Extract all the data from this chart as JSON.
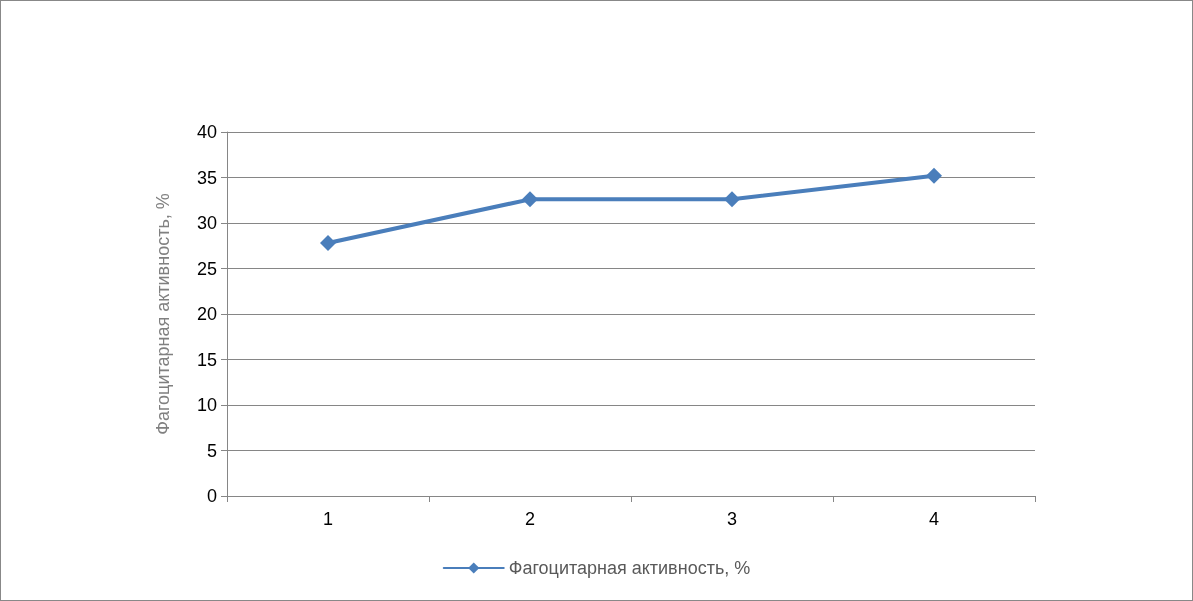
{
  "chart_data": {
    "type": "line",
    "ylabel": "Фагоцитарная активность, %",
    "categories": [
      "1",
      "2",
      "3",
      "4"
    ],
    "series": [
      {
        "name": "Фагоцитарная активность, %",
        "color": "#4a7ebb",
        "values": [
          27.8,
          32.6,
          32.6,
          35.2
        ]
      }
    ],
    "ylim": [
      0,
      40
    ],
    "yticks": [
      0,
      5,
      10,
      15,
      20,
      25,
      30,
      35,
      40
    ],
    "grid": "y",
    "legend": "bottom",
    "marker": "diamond",
    "line_style": "solid"
  }
}
